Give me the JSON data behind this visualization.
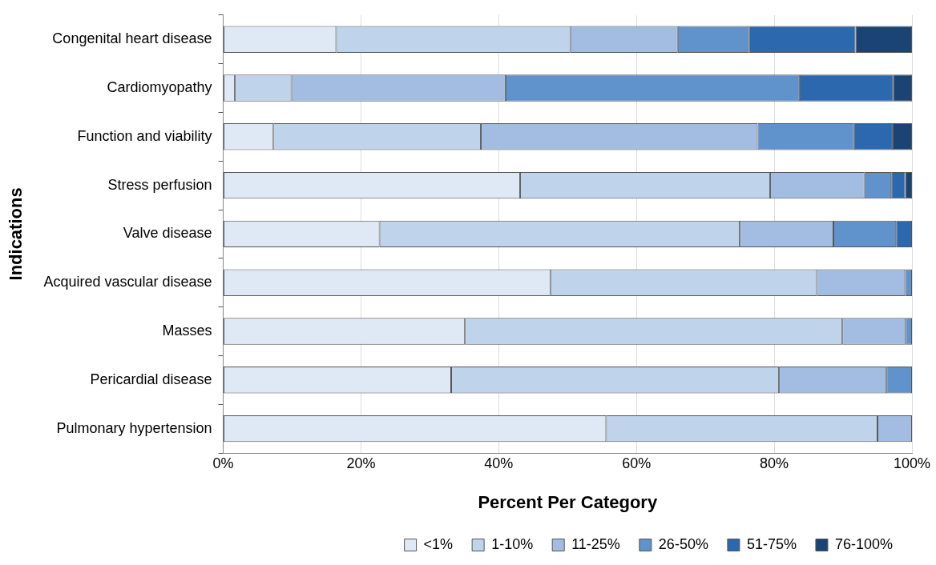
{
  "chart_data": {
    "type": "bar",
    "orientation": "horizontal",
    "stacked": true,
    "xlabel": "Percent Per Category",
    "ylabel": "Indications",
    "categories": [
      "Congenital heart disease",
      "Cardiomyopathy",
      "Function and viability",
      "Stress perfusion",
      "Valve disease",
      "Acquired vascular disease",
      "Masses",
      "Pericardial disease",
      "Pulmonary hypertension"
    ],
    "series": [
      {
        "name": "<1%",
        "color": "#dfe8f5",
        "values": [
          16.4,
          1.7,
          7.3,
          43.1,
          22.7,
          47.5,
          35.1,
          33.1,
          55.6
        ]
      },
      {
        "name": "1-10%",
        "color": "#bfd3eb",
        "values": [
          34.0,
          8.2,
          30.1,
          36.3,
          52.3,
          38.7,
          54.8,
          47.6,
          39.4
        ]
      },
      {
        "name": "11-25%",
        "color": "#a3bde2",
        "values": [
          15.6,
          31.1,
          40.2,
          13.7,
          13.6,
          12.8,
          9.2,
          15.6,
          5.0
        ]
      },
      {
        "name": "26-50%",
        "color": "#6092cb",
        "values": [
          10.3,
          42.7,
          14.0,
          3.9,
          9.1,
          1.0,
          0.9,
          3.7,
          0
        ]
      },
      {
        "name": "51-75%",
        "color": "#2b68ad",
        "values": [
          15.5,
          13.6,
          5.6,
          2.0,
          2.3,
          0,
          0,
          0,
          0
        ]
      },
      {
        "name": "76-100%",
        "color": "#1a4474",
        "values": [
          8.2,
          2.7,
          2.8,
          1.0,
          0,
          0,
          0,
          0,
          0
        ]
      }
    ],
    "xlim": [
      0,
      100
    ],
    "xticks": [
      {
        "value": 0,
        "label": "0%"
      },
      {
        "value": 20,
        "label": "20%"
      },
      {
        "value": 40,
        "label": "40%"
      },
      {
        "value": 60,
        "label": "60%"
      },
      {
        "value": 80,
        "label": "80%"
      },
      {
        "value": 100,
        "label": "100%"
      }
    ],
    "grid": "x",
    "legend": "bottom"
  }
}
